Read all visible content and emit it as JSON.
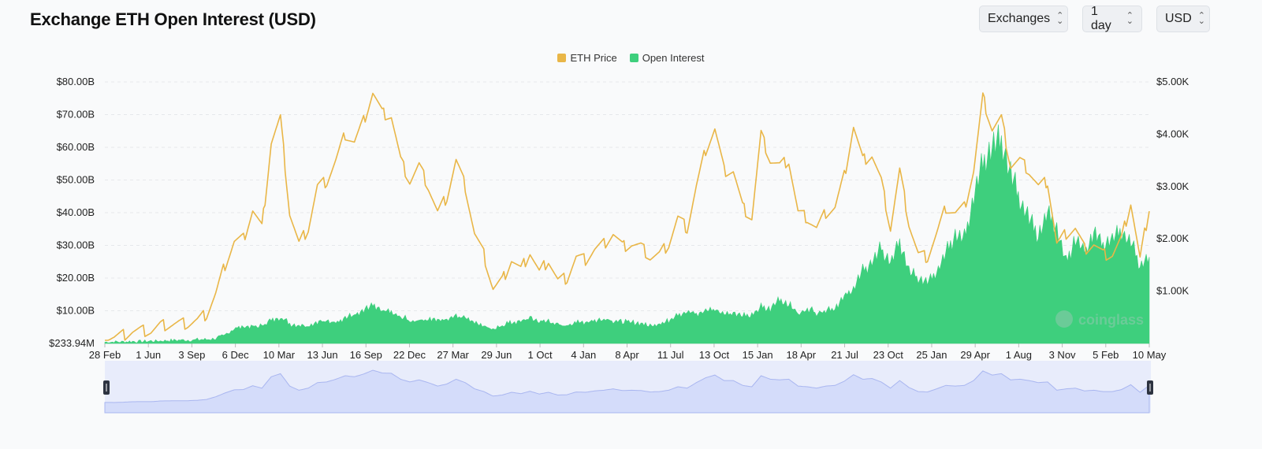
{
  "header": {
    "title": "Exchange ETH Open Interest (USD)",
    "selects": [
      {
        "name": "exchanges-select",
        "value": "Exchanges"
      },
      {
        "name": "interval-select",
        "value": "1 day"
      },
      {
        "name": "currency-select",
        "value": "USD"
      }
    ]
  },
  "watermark": "coinglass",
  "chart_data": {
    "type": "area",
    "title": "Exchange ETH Open Interest (USD)",
    "colors": {
      "eth_price": "#e9b647",
      "open_interest": "#3ecf7d",
      "navigator": "#dbe2fb"
    },
    "x_ticks": [
      "28 Feb",
      "1 Jun",
      "3 Sep",
      "6 Dec",
      "10 Mar",
      "13 Jun",
      "16 Sep",
      "22 Dec",
      "27 Mar",
      "29 Jun",
      "1 Oct",
      "4 Jan",
      "8 Apr",
      "11 Jul",
      "13 Oct",
      "15 Jan",
      "18 Apr",
      "21 Jul",
      "23 Oct",
      "25 Jan",
      "29 Apr",
      "1 Aug",
      "3 Nov",
      "5 Feb",
      "10 May"
    ],
    "y_left_ticks": [
      "$233.94M",
      "$10.00B",
      "$20.00B",
      "$30.00B",
      "$40.00B",
      "$50.00B",
      "$60.00B",
      "$70.00B",
      "$80.00B"
    ],
    "y_left_range": [
      0,
      80
    ],
    "y_left_unit": "B USD",
    "y_right_ticks": [
      "$1.00K",
      "$2.00K",
      "$3.00K",
      "$4.00K",
      "$5.00K"
    ],
    "y_right_range": [
      0,
      5000
    ],
    "legend_placement": "top-center",
    "grid": true,
    "series": [
      {
        "name": "ETH Price",
        "axis": "right",
        "values": [
          130,
          120,
          160,
          230,
          245,
          235,
          340,
          360,
          380,
          380,
          440,
          560,
          950,
          1500,
          1950,
          2000,
          2550,
          2200,
          3850,
          4300,
          2500,
          1900,
          2200,
          3000,
          3100,
          3500,
          4000,
          3850,
          4250,
          4800,
          4400,
          4350,
          3500,
          3100,
          3400,
          3000,
          2500,
          2800,
          3500,
          3000,
          2100,
          1700,
          1050,
          1200,
          1600,
          1400,
          1750,
          1350,
          1600,
          1200,
          1250,
          1650,
          1600,
          1800,
          1900,
          2100,
          1850,
          1900,
          1850,
          1650,
          1700,
          1900,
          2400,
          2200,
          3000,
          3700,
          4100,
          3300,
          3300,
          2600,
          2400,
          4000,
          3500,
          3400,
          3500,
          2500,
          2400,
          2200,
          2500,
          2600,
          3200,
          4150,
          3500,
          3600,
          3100,
          2200,
          3300,
          2300,
          1700,
          1650,
          2100,
          2600,
          2500,
          2600,
          3300,
          4700,
          4100,
          4300,
          3400,
          3500,
          3300,
          3000,
          3100,
          1900,
          2100,
          2200,
          1800,
          1900,
          1700,
          1700,
          2000,
          2700,
          1600,
          2600
        ],
        "x_range_months": "28 Feb - 10 May"
      },
      {
        "name": "Open Interest",
        "axis": "left",
        "values": [
          0.4,
          0.4,
          0.5,
          0.6,
          0.6,
          0.7,
          0.8,
          0.9,
          1.0,
          1.0,
          1.1,
          1.2,
          1.5,
          2.5,
          4.5,
          5.2,
          5.0,
          5.5,
          7.0,
          8.0,
          6.0,
          5.5,
          5.5,
          6.5,
          6.8,
          6.5,
          8.0,
          8.5,
          10.0,
          11.5,
          10.0,
          9.5,
          8.0,
          7.0,
          7.0,
          7.5,
          7.0,
          7.5,
          8.5,
          8.0,
          6.5,
          5.5,
          4.0,
          5.5,
          6.5,
          6.5,
          8.0,
          6.5,
          7.0,
          5.5,
          5.5,
          6.5,
          6.5,
          7.0,
          7.5,
          7.0,
          6.5,
          6.5,
          6.0,
          5.5,
          6.0,
          7.0,
          9.0,
          9.5,
          9.0,
          10.0,
          10.5,
          9.0,
          9.5,
          8.5,
          8.5,
          11.0,
          10.5,
          13.5,
          12.0,
          9.0,
          10.5,
          9.5,
          10.0,
          11.0,
          14.0,
          17.0,
          22.0,
          25.0,
          29.0,
          24.5,
          31.0,
          22.0,
          20.0,
          19.0,
          22.0,
          28.0,
          33.0,
          32.0,
          45.0,
          55.0,
          60.0,
          62.0,
          52.0,
          44.0,
          38.0,
          33.0,
          40.0,
          35.0,
          25.0,
          32.0,
          28.0,
          34.0,
          30.0,
          32.0,
          34.0,
          31.0,
          24.0,
          26.0
        ]
      }
    ]
  }
}
